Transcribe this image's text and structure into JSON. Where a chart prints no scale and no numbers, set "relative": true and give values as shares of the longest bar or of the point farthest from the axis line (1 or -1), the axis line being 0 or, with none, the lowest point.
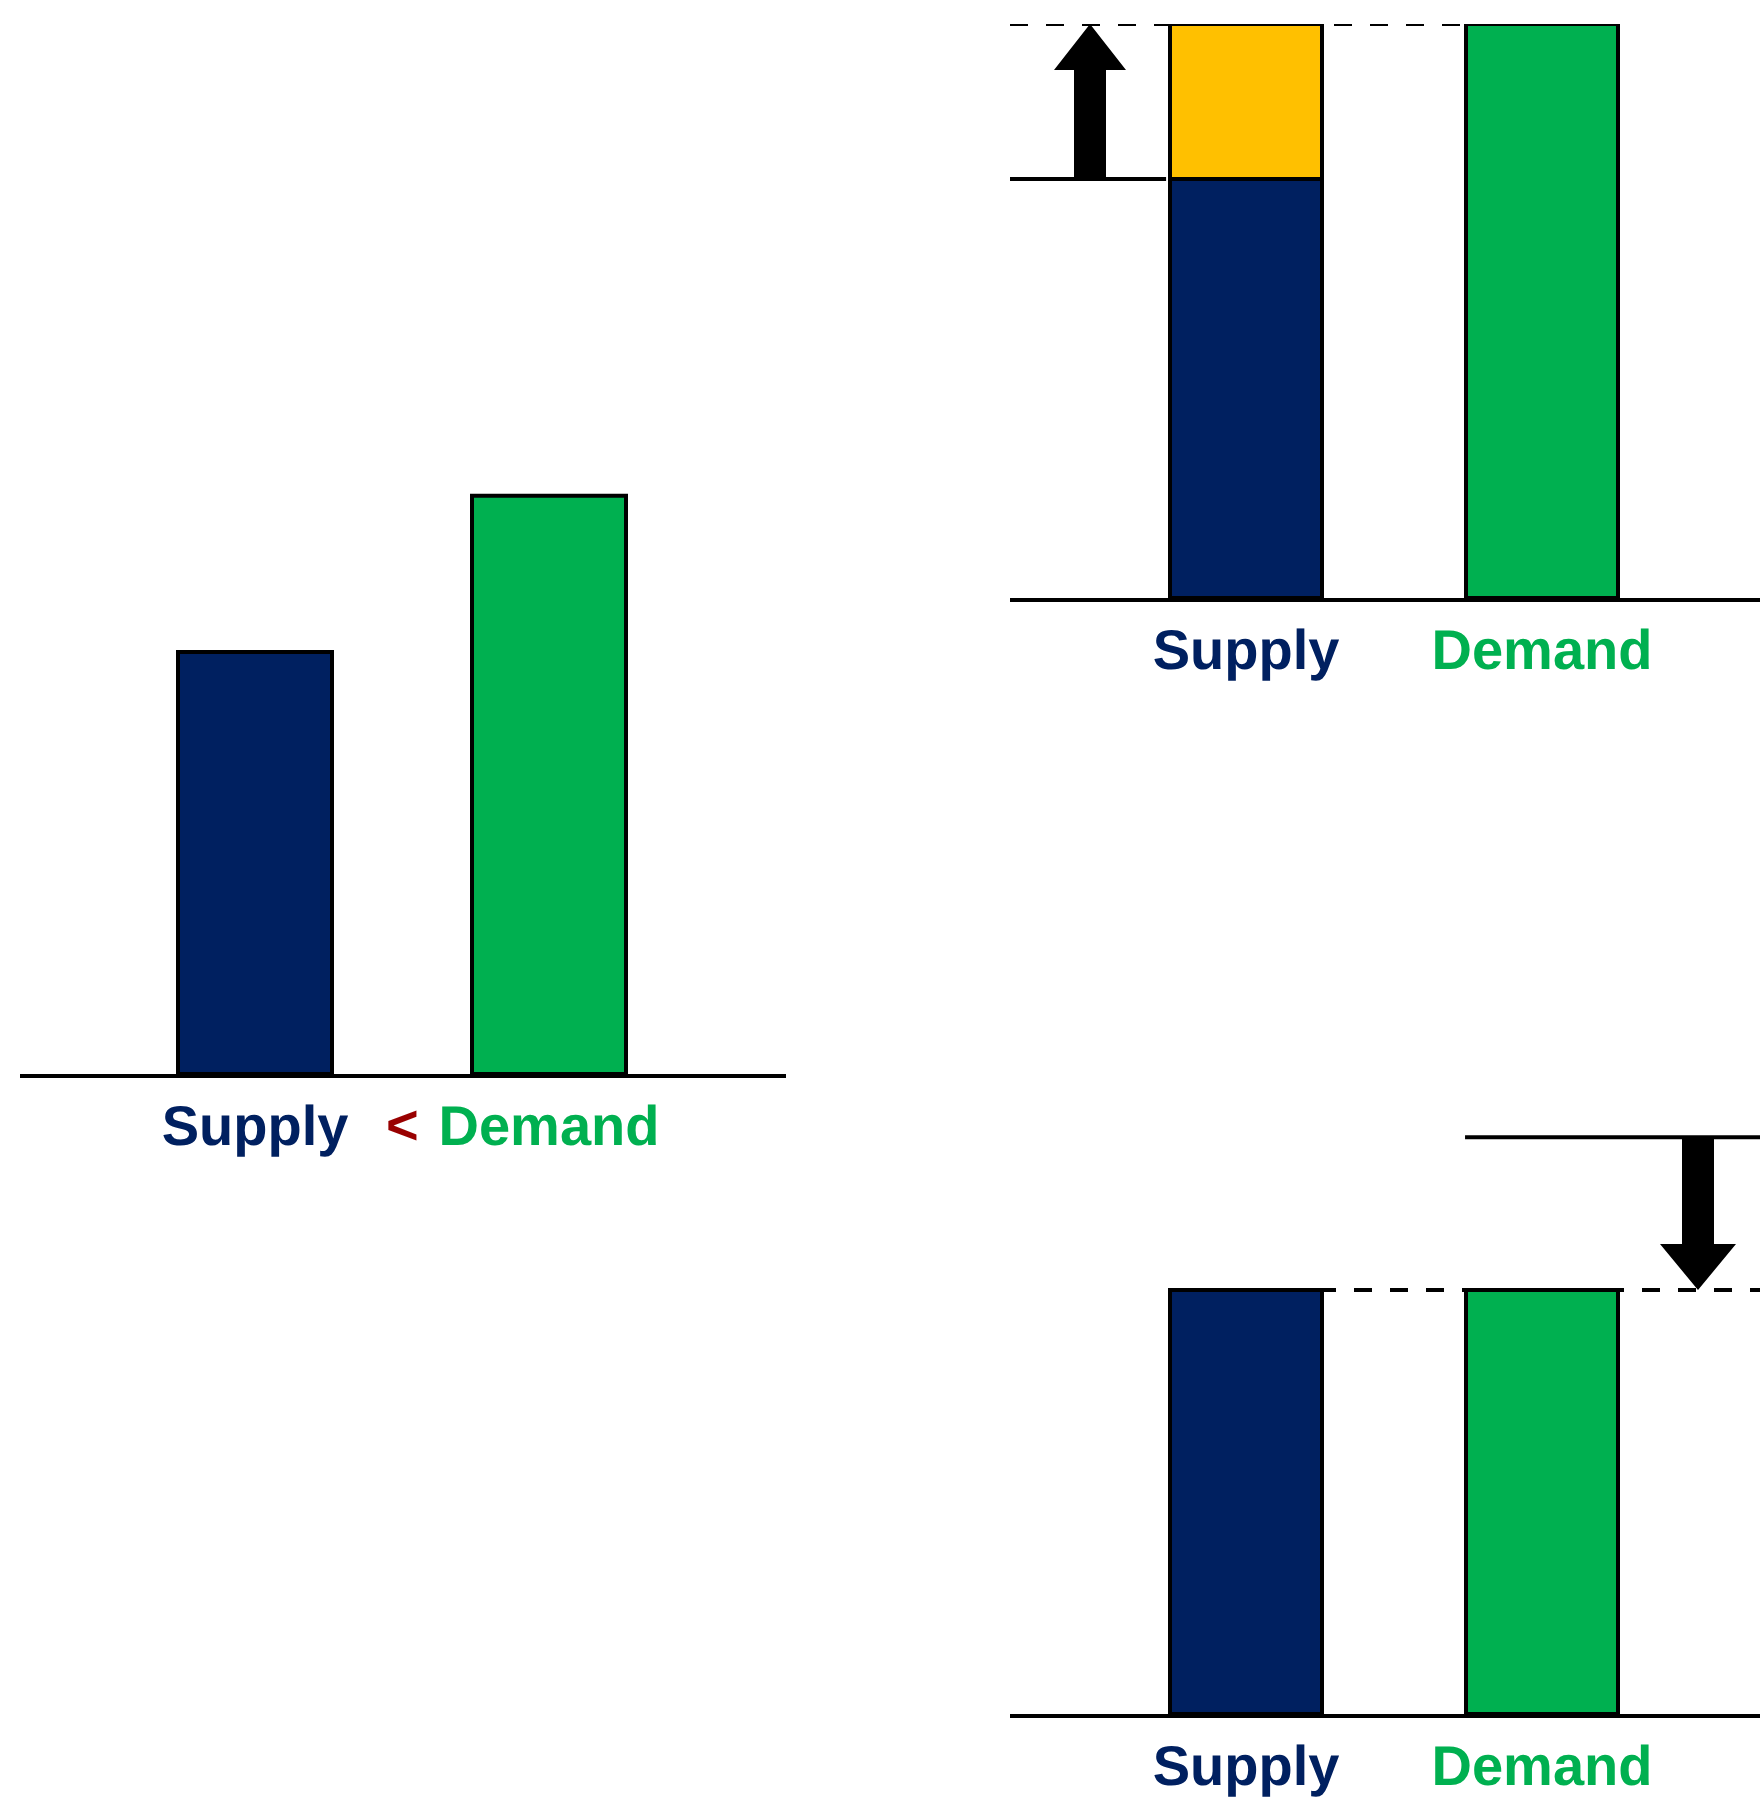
{
  "chart_data": [
    {
      "type": "bar",
      "relative": true,
      "categories": [
        "Supply",
        "Demand"
      ],
      "series": [
        {
          "values": [
            0.73,
            1
          ],
          "colors": [
            "#002060",
            "#00b050"
          ]
        }
      ],
      "annotations": [
        "<"
      ]
    },
    {
      "type": "bar",
      "relative": true,
      "stacked": true,
      "categories": [
        "Supply",
        "Demand"
      ],
      "series": [
        {
          "values": [
            0.73,
            1
          ],
          "colors": [
            "#002060",
            "#00b050"
          ]
        },
        {
          "values": [
            0.27,
            null
          ],
          "color": "#ffc000"
        }
      ],
      "ref_lines": [
        {
          "axis": "y",
          "value": 0.73,
          "color": "#000000",
          "line_style": "solid"
        },
        {
          "axis": "y",
          "value": 1,
          "color": "#000000",
          "line_style": "dashed"
        }
      ]
    },
    {
      "type": "bar",
      "relative": true,
      "categories": [
        "Supply",
        "Demand"
      ],
      "series": [
        {
          "values": [
            1,
            1
          ],
          "colors": [
            "#002060",
            "#00b050"
          ]
        }
      ],
      "ref_lines": [
        {
          "axis": "y",
          "value": 1.36,
          "color": "#000000",
          "line_style": "solid"
        },
        {
          "axis": "y",
          "value": 1,
          "color": "#000000",
          "line_style": "dashed"
        }
      ]
    }
  ]
}
